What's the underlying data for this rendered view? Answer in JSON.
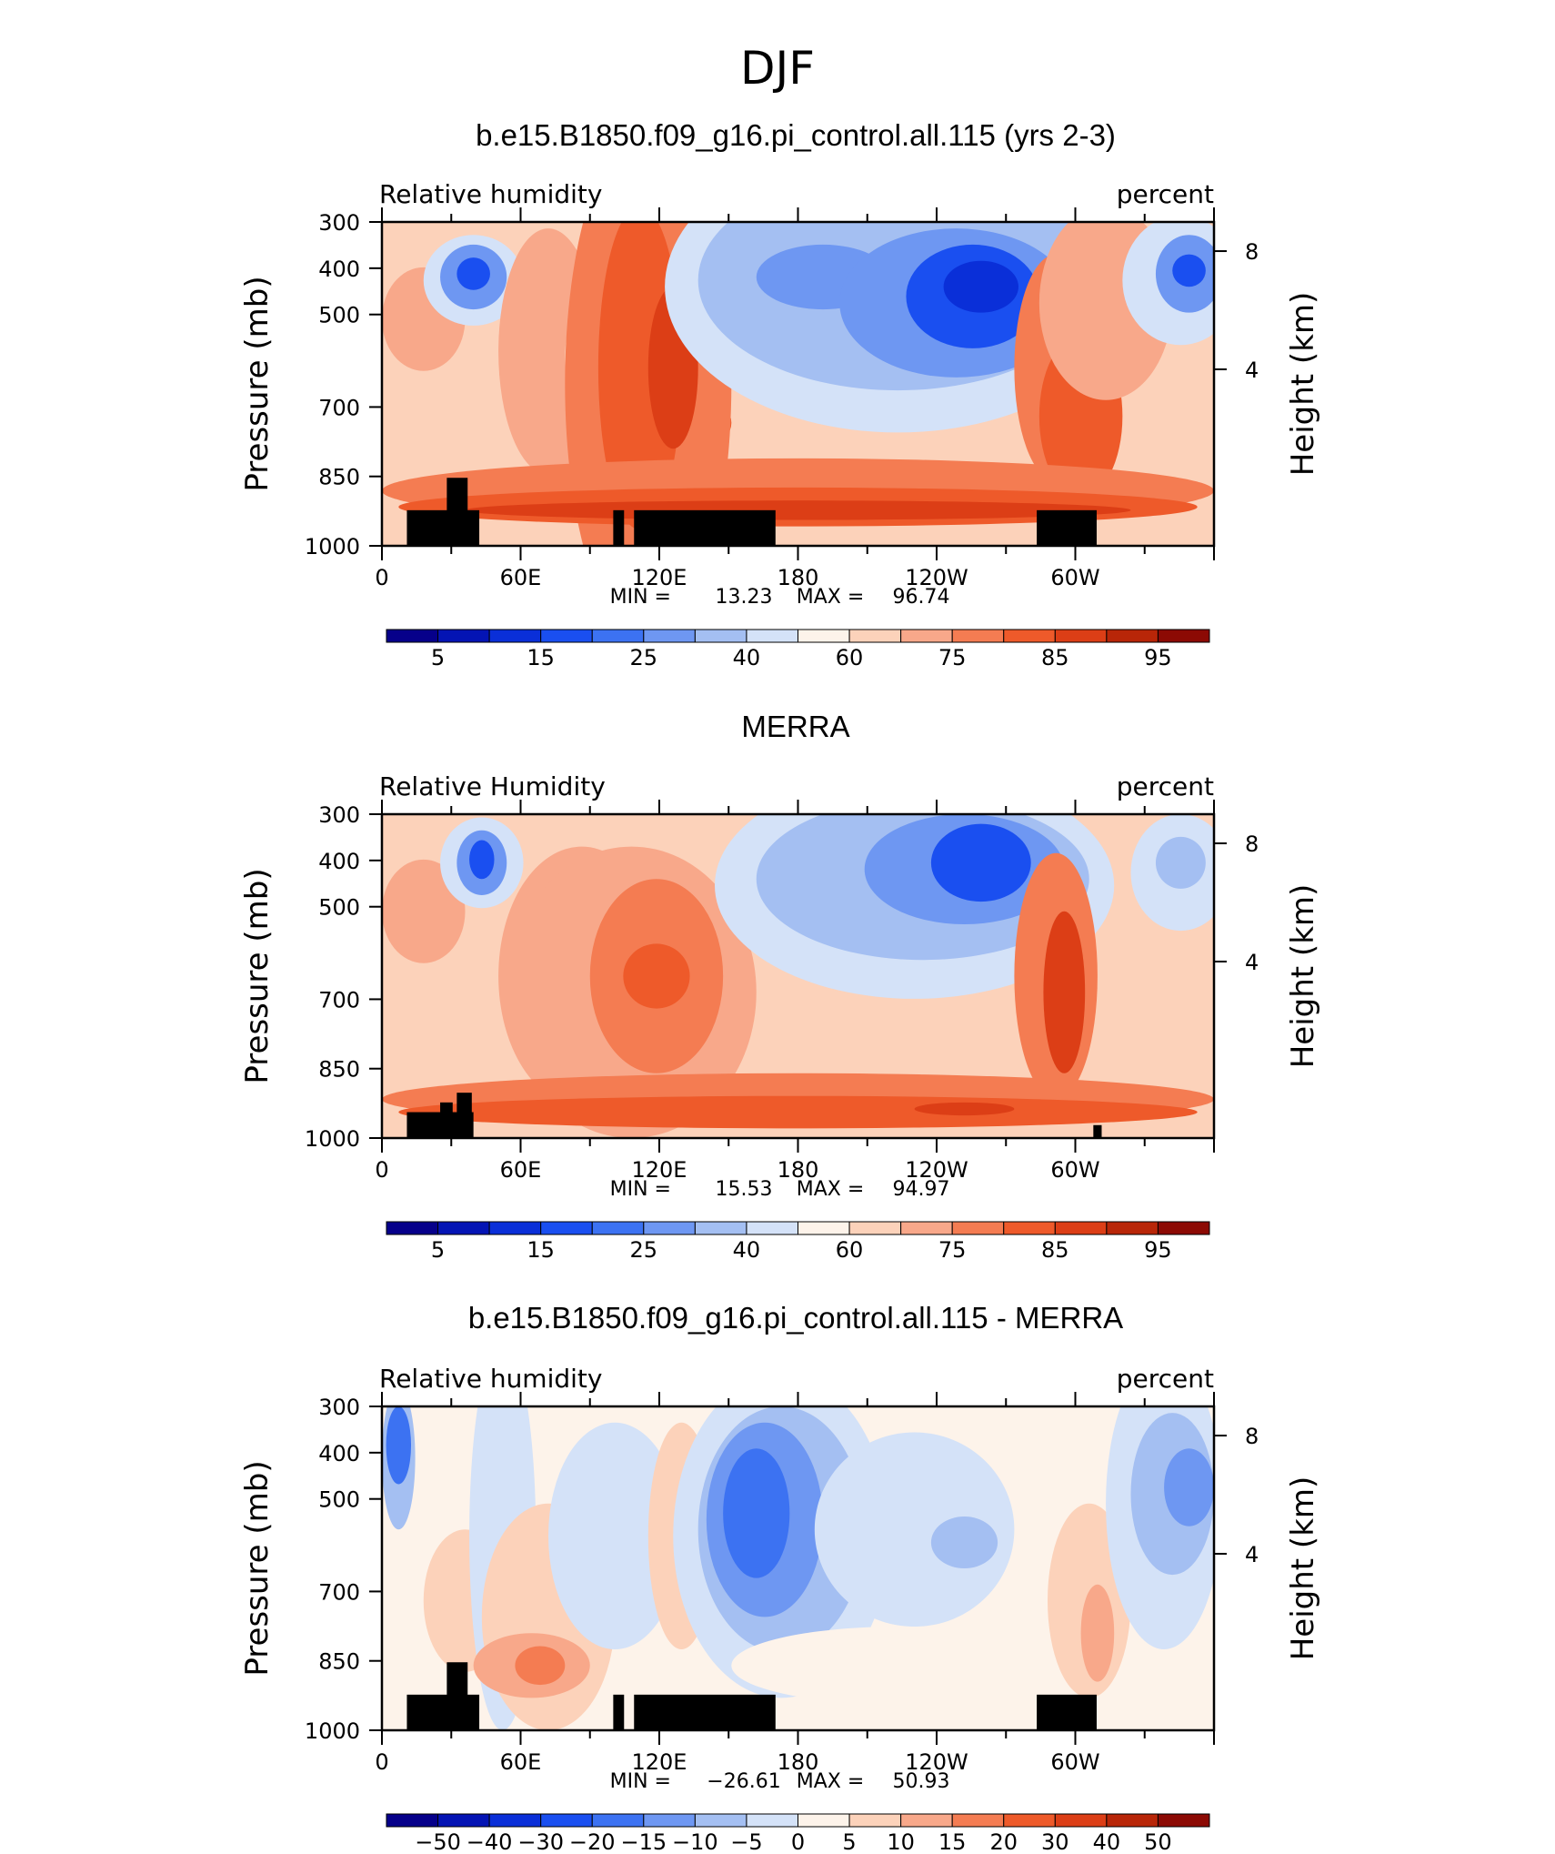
{
  "main_title": "DJF",
  "chart_data": [
    {
      "type": "heatmap",
      "title": "b.e15.B1850.f09_g16.pi_control.all.115 (yrs 2-3)",
      "left_label": "Relative humidity",
      "right_label": "percent",
      "ylabel": "Pressure (mb)",
      "ylabel_right": "Height (km)",
      "yticks": [
        "300",
        "400",
        "500",
        "700",
        "850",
        "1000"
      ],
      "yticks_right": [
        "8",
        "4"
      ],
      "xticks": [
        "0",
        "60E",
        "120E",
        "180",
        "120W",
        "60W"
      ],
      "stats": {
        "min_label": "MIN =",
        "min": "13.23",
        "max_label": "MAX =",
        "max": "96.74"
      },
      "colorbar_labels": [
        "5",
        "15",
        "25",
        "40",
        "60",
        "75",
        "85",
        "95"
      ]
    },
    {
      "type": "heatmap",
      "title": "MERRA",
      "left_label": "Relative Humidity",
      "right_label": "percent",
      "ylabel": "Pressure (mb)",
      "ylabel_right": "Height (km)",
      "yticks": [
        "300",
        "400",
        "500",
        "700",
        "850",
        "1000"
      ],
      "yticks_right": [
        "8",
        "4"
      ],
      "xticks": [
        "0",
        "60E",
        "120E",
        "180",
        "120W",
        "60W"
      ],
      "stats": {
        "min_label": "MIN =",
        "min": "15.53",
        "max_label": "MAX =",
        "max": "94.97"
      },
      "colorbar_labels": [
        "5",
        "15",
        "25",
        "40",
        "60",
        "75",
        "85",
        "95"
      ]
    },
    {
      "type": "heatmap",
      "title": "b.e15.B1850.f09_g16.pi_control.all.115 - MERRA",
      "left_label": "Relative humidity",
      "right_label": "percent",
      "ylabel": "Pressure (mb)",
      "ylabel_right": "Height (km)",
      "yticks": [
        "300",
        "400",
        "500",
        "700",
        "850",
        "1000"
      ],
      "yticks_right": [
        "8",
        "4"
      ],
      "xticks": [
        "0",
        "60E",
        "120E",
        "180",
        "120W",
        "60W"
      ],
      "stats": {
        "min_label": "MIN =",
        "min": "−26.61",
        "max_label": "MAX =",
        "max": "50.93"
      },
      "colorbar_labels": [
        "−50",
        "−40",
        "−30",
        "−20",
        "−15",
        "−10",
        "−5",
        "0",
        "5",
        "10",
        "15",
        "20",
        "30",
        "40",
        "50"
      ]
    }
  ],
  "palette": [
    "#06008a",
    "#0414b4",
    "#0a2fd8",
    "#1a4ff0",
    "#3c72f2",
    "#6e97f2",
    "#a4bff2",
    "#d4e2f8",
    "#fdf3ea",
    "#fcd2ba",
    "#f8a88a",
    "#f47c52",
    "#ee5a2a",
    "#dc3e16",
    "#b82608",
    "#8c0a04"
  ]
}
